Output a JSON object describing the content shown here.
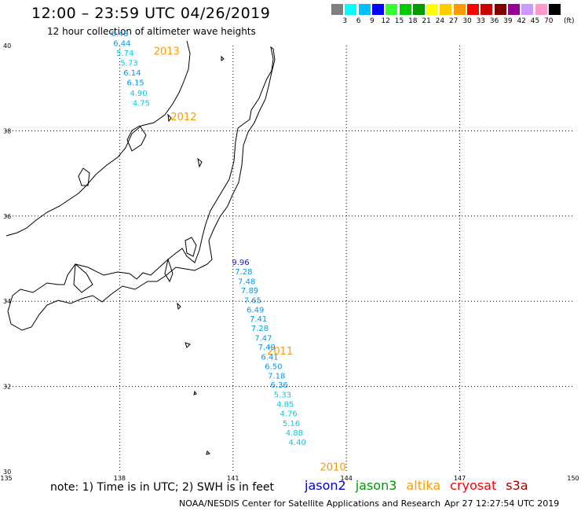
{
  "header": {
    "title": "12:00 – 23:59 UTC 04/26/2019",
    "subtitle": "12 hour collection of altimeter wave heights"
  },
  "color_scale": {
    "unit": "(ft)",
    "labels": [
      "3",
      "6",
      "9",
      "12",
      "15",
      "18",
      "21",
      "24",
      "27",
      "30",
      "33",
      "36",
      "39",
      "42",
      "45",
      "70"
    ],
    "colors": [
      "#808080",
      "#00ffff",
      "#00bfff",
      "#0000ff",
      "#33ff33",
      "#00cc00",
      "#009900",
      "#ffff00",
      "#ffcc00",
      "#ff9900",
      "#ff0000",
      "#cc0000",
      "#800000",
      "#990099",
      "#cc99ff",
      "#ff99cc",
      "#000000"
    ]
  },
  "map": {
    "lat_labels": [
      "40",
      "38",
      "36",
      "34",
      "32",
      "30"
    ],
    "lon_labels": [
      "135",
      "138",
      "141",
      "144",
      "147",
      "150"
    ],
    "pass_labels": [
      {
        "text": "2013",
        "lat": 39.79,
        "lon": 138.9
      },
      {
        "text": "2012",
        "lat": 38.25,
        "lon": 139.35
      },
      {
        "text": "2011",
        "lat": 32.75,
        "lon": 141.9
      },
      {
        "text": "2010",
        "lat": 30.03,
        "lon": 143.3
      }
    ],
    "track_north": [
      {
        "v": "6.48",
        "lat": 40.22,
        "lon": 137.77
      },
      {
        "v": "6.44",
        "lat": 39.99,
        "lon": 137.83
      },
      {
        "v": "5.74",
        "lat": 39.76,
        "lon": 137.91
      },
      {
        "v": "5.73",
        "lat": 39.53,
        "lon": 138.02
      },
      {
        "v": "6.14",
        "lat": 39.3,
        "lon": 138.1
      },
      {
        "v": "6.15",
        "lat": 39.07,
        "lon": 138.19
      },
      {
        "v": "4.90",
        "lat": 38.82,
        "lon": 138.27
      },
      {
        "v": "4.75",
        "lat": 38.59,
        "lon": 138.34
      }
    ],
    "track_south": [
      {
        "v": "9.96",
        "lat": 34.85,
        "lon": 140.97
      },
      {
        "v": "7.28",
        "lat": 34.63,
        "lon": 141.05
      },
      {
        "v": "7.48",
        "lat": 34.4,
        "lon": 141.13
      },
      {
        "v": "7.89",
        "lat": 34.19,
        "lon": 141.21
      },
      {
        "v": "7.65",
        "lat": 33.96,
        "lon": 141.29
      },
      {
        "v": "6.49",
        "lat": 33.74,
        "lon": 141.36
      },
      {
        "v": "7.41",
        "lat": 33.52,
        "lon": 141.44
      },
      {
        "v": "7.28",
        "lat": 33.3,
        "lon": 141.48
      },
      {
        "v": "7.47",
        "lat": 33.07,
        "lon": 141.57
      },
      {
        "v": "7.49",
        "lat": 32.86,
        "lon": 141.66
      },
      {
        "v": "6.41",
        "lat": 32.63,
        "lon": 141.74
      },
      {
        "v": "6.50",
        "lat": 32.41,
        "lon": 141.84
      },
      {
        "v": "7.18",
        "lat": 32.19,
        "lon": 141.92
      },
      {
        "v": "6.36",
        "lat": 31.97,
        "lon": 141.99
      },
      {
        "v": "5.33",
        "lat": 31.74,
        "lon": 142.08
      },
      {
        "v": "4.85",
        "lat": 31.52,
        "lon": 142.15
      },
      {
        "v": "4.76",
        "lat": 31.3,
        "lon": 142.24
      },
      {
        "v": "5.16",
        "lat": 31.07,
        "lon": 142.31
      },
      {
        "v": "4.88",
        "lat": 30.85,
        "lon": 142.39
      },
      {
        "v": "4.40",
        "lat": 30.63,
        "lon": 142.47
      }
    ]
  },
  "note": "note: 1) Time is in UTC; 2) SWH is in feet",
  "satellites": [
    {
      "name": "jason2",
      "color": "#0000cc"
    },
    {
      "name": "jason3",
      "color": "#009900"
    },
    {
      "name": "altika",
      "color": "#ff9900"
    },
    {
      "name": "cryosat",
      "color": "#ff0000"
    },
    {
      "name": "s3a",
      "color": "#990000"
    }
  ],
  "footer": {
    "credit": "NOAA/NESDIS Center for Satellite Applications and Research",
    "generated": "Apr 27 12:27:54 UTC 2019"
  }
}
